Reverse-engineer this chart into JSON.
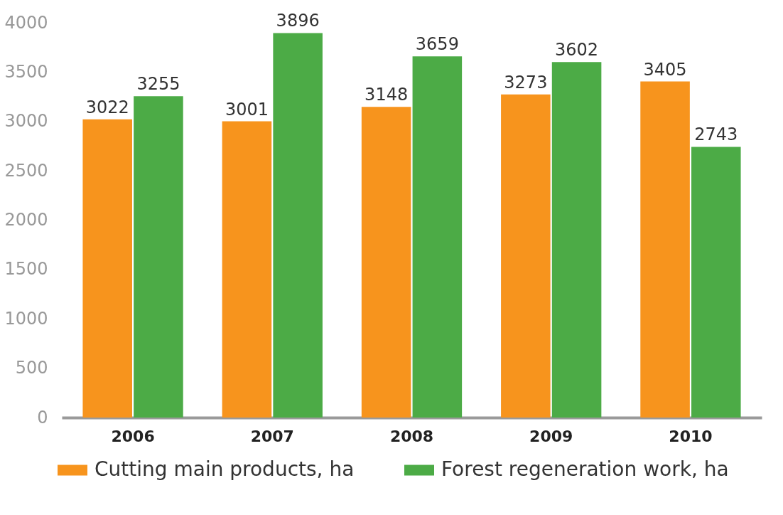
{
  "chart_data": {
    "type": "bar",
    "categories": [
      "2006",
      "2007",
      "2008",
      "2009",
      "2010"
    ],
    "series": [
      {
        "name": "Cutting main products, ha",
        "color": "#f7941d",
        "values": [
          3022,
          3001,
          3148,
          3273,
          3405
        ]
      },
      {
        "name": "Forest regeneration work, ha",
        "color": "#4cab46",
        "values": [
          3255,
          3896,
          3659,
          3602,
          2743
        ]
      }
    ],
    "ylim": [
      0,
      4000
    ],
    "yticks": [
      0,
      500,
      1000,
      1500,
      2000,
      2500,
      3000,
      3500,
      4000
    ],
    "grid": false,
    "legend": "bottom",
    "data_labels": true
  }
}
